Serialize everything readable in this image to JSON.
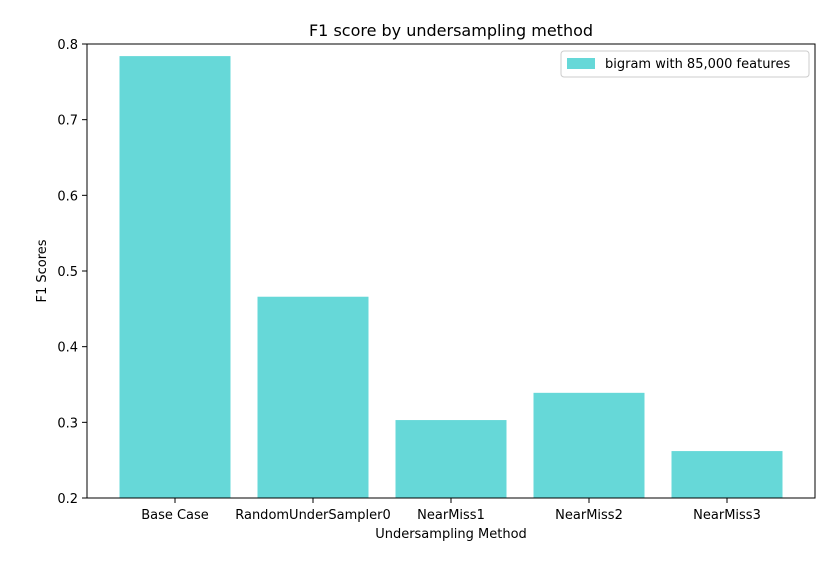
{
  "chart_data": {
    "type": "bar",
    "title": "F1 score by undersampling method",
    "xlabel": "Undersampling Method",
    "ylabel": "F1 Scores",
    "categories": [
      "Base Case",
      "RandomUnderSampler0",
      "NearMiss1",
      "NearMiss2",
      "NearMiss3"
    ],
    "series": [
      {
        "name": "bigram with 85,000 features",
        "values": [
          0.784,
          0.466,
          0.303,
          0.339,
          0.262
        ],
        "color": "#66d8d8"
      }
    ],
    "ylim": [
      0.2,
      0.8
    ],
    "yticks": [
      "0.2",
      "0.3",
      "0.4",
      "0.5",
      "0.6",
      "0.7",
      "0.8"
    ],
    "grid": false,
    "legend_position": "top-right"
  }
}
